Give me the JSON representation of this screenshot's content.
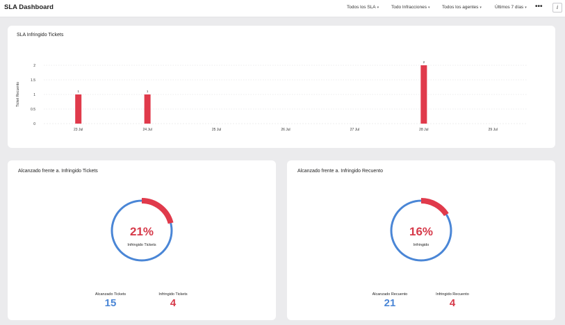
{
  "app": {
    "title": "SLA Dashboard"
  },
  "filters": {
    "sla": "Todos los SLA",
    "infractions": "Todo Infracciones",
    "agents": "Todos los agentes",
    "period": "Últimos 7 días"
  },
  "toolbar": {
    "more_icon": "more-horizontal-icon",
    "info_icon": "info-icon",
    "more_glyph": "•••",
    "info_glyph": "i"
  },
  "bar_card": {
    "title": "SLA Infringido Tickets"
  },
  "chart_data": {
    "type": "bar",
    "title": "SLA Infringido Tickets",
    "xlabel": "",
    "ylabel": "Ticket Recuento",
    "categories": [
      "23 Jul",
      "24 Jul",
      "25 Jul",
      "26 Jul",
      "27 Jul",
      "28 Jul",
      "29 Jul"
    ],
    "values": [
      1,
      1,
      0,
      0,
      0,
      2,
      0
    ],
    "ylim": [
      0,
      2
    ],
    "yticks": [
      "0",
      "0.5",
      "1",
      "1.5",
      "2"
    ],
    "data_labels": [
      "1",
      "1",
      "",
      "",
      "",
      "2",
      ""
    ],
    "grid": true,
    "bar_color": "#e03a4b"
  },
  "left_card": {
    "title": "Alcanzado frente a. Infringido Tickets",
    "percent": "21%",
    "ring_label": "Infringido Tickets",
    "fraction": 0.21,
    "stat1_label": "Alcanzado Tickets",
    "stat1_value": "15",
    "stat2_label": "Infringido Tickets",
    "stat2_value": "4"
  },
  "right_card": {
    "title": "Alcanzado frente a. Infringido Recuento",
    "percent": "16%",
    "ring_label": "Infringido",
    "fraction": 0.16,
    "stat1_label": "Alcanzado Recuento",
    "stat1_value": "21",
    "stat2_label": "Infringido Recuento",
    "stat2_value": "4"
  },
  "colors": {
    "achieved": "#4a86d6",
    "breached": "#e03a4b"
  }
}
